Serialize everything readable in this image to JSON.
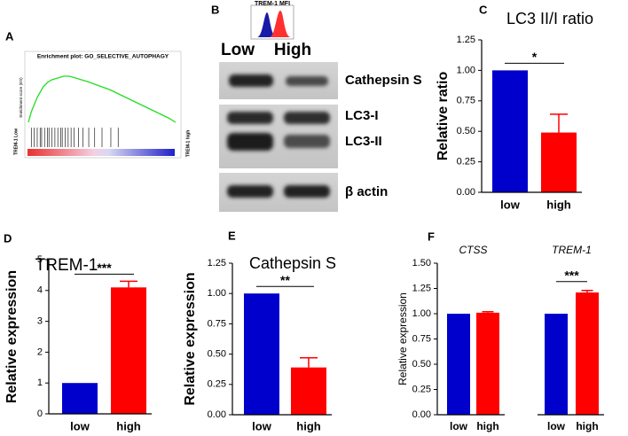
{
  "chart_data": [
    {
      "type": "enrichment",
      "label": "A",
      "title": "Enrichment plot: GO_SELECTIVE_AUTOPHAGY",
      "ylabel": "Enrichment score (ES)",
      "x": [
        0,
        2,
        4,
        6,
        8,
        10,
        13,
        16,
        20,
        24,
        28,
        32,
        36,
        40,
        45,
        50,
        55,
        60,
        65,
        70,
        75,
        80,
        85,
        90,
        95,
        100
      ],
      "values": [
        0.0,
        0.12,
        0.2,
        0.28,
        0.34,
        0.4,
        0.45,
        0.48,
        0.5,
        0.52,
        0.52,
        0.5,
        0.48,
        0.46,
        0.43,
        0.4,
        0.37,
        0.33,
        0.29,
        0.25,
        0.21,
        0.17,
        0.13,
        0.09,
        0.05,
        0.0
      ],
      "xlim": [
        0,
        100
      ],
      "ylim": [
        -0.02,
        0.58
      ],
      "color": "#22dd22",
      "hits": [
        2,
        4,
        6,
        8,
        9,
        11,
        13,
        14,
        16,
        18,
        20,
        22,
        23,
        25,
        27,
        29,
        31,
        34,
        37,
        41,
        45,
        50,
        56,
        61
      ],
      "low_label": "TREM-1 Low",
      "high_label": "TREM-1 high"
    },
    {
      "type": "blot",
      "label": "B",
      "inset_title": "TREM-1 MFI",
      "groups": [
        "Low",
        "High"
      ],
      "group_colors": [
        "#1a1aa8",
        "#ff2020"
      ],
      "bands": [
        "Cathepsin S",
        "LC3-I",
        "LC3-II",
        "β actin"
      ]
    },
    {
      "type": "bar",
      "label": "C",
      "title": "LC3 II/I ratio",
      "ylabel": "Relative ratio",
      "categories": [
        "low",
        "high"
      ],
      "values": [
        1.0,
        0.49
      ],
      "errors": [
        null,
        0.15
      ],
      "colors": [
        "#0000cc",
        "#ff0000"
      ],
      "significance": "*",
      "ylim": [
        0,
        1.25
      ],
      "yticks": [
        {
          "value": 0,
          "label": "0.00"
        },
        {
          "value": 0.25,
          "label": "0.25"
        },
        {
          "value": 0.5,
          "label": "0.50"
        },
        {
          "value": 0.75,
          "label": "0.75"
        },
        {
          "value": 1,
          "label": "1.00"
        },
        {
          "value": 1.25,
          "label": "1.25"
        }
      ]
    },
    {
      "type": "bar",
      "label": "D",
      "title": "TREM-1",
      "ylabel": "Relative expression",
      "categories": [
        "low",
        "high"
      ],
      "values": [
        1.0,
        4.1
      ],
      "errors": [
        null,
        0.2
      ],
      "colors": [
        "#0000cc",
        "#ff0000"
      ],
      "significance": "***",
      "ylim": [
        0,
        5
      ],
      "yticks": [
        0,
        1,
        2,
        3,
        4,
        5
      ]
    },
    {
      "type": "bar",
      "label": "E",
      "title": "Cathepsin S",
      "ylabel": "Relative expression",
      "categories": [
        "low",
        "high"
      ],
      "values": [
        1.0,
        0.39
      ],
      "errors": [
        null,
        0.08
      ],
      "colors": [
        "#0000cc",
        "#ff0000"
      ],
      "significance": "**",
      "ylim": [
        0,
        1.25
      ],
      "yticks": [
        {
          "value": 0,
          "label": "0.00"
        },
        {
          "value": 0.25,
          "label": "0.25"
        },
        {
          "value": 0.5,
          "label": "0.50"
        },
        {
          "value": 0.75,
          "label": "0.75"
        },
        {
          "value": 1,
          "label": "1.00"
        },
        {
          "value": 1.25,
          "label": "1.25"
        }
      ]
    },
    {
      "type": "grouped_bar",
      "label": "F",
      "ylabel": "Relative expression",
      "groups": [
        "CTSS",
        "TREM-1"
      ],
      "series": [
        {
          "name": "low",
          "color": "#0000cc",
          "values": [
            1.0,
            1.0
          ],
          "errors": [
            null,
            null
          ]
        },
        {
          "name": "high",
          "color": "#ff0000",
          "values": [
            1.01,
            1.21
          ],
          "errors": [
            0.01,
            0.02
          ]
        }
      ],
      "significance": [
        null,
        "***"
      ],
      "ylim": [
        0,
        1.5
      ],
      "yticks": [
        {
          "value": 0,
          "label": "0.00"
        },
        {
          "value": 0.25,
          "label": "0.25"
        },
        {
          "value": 0.5,
          "label": "0.50"
        },
        {
          "value": 0.75,
          "label": "0.75"
        },
        {
          "value": 1,
          "label": "1.00"
        },
        {
          "value": 1.25,
          "label": "1.25"
        },
        {
          "value": 1.5,
          "label": "1.50"
        }
      ]
    }
  ]
}
